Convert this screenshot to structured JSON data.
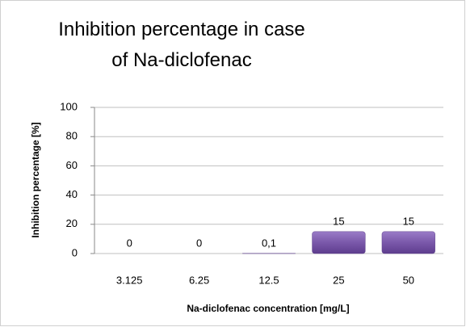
{
  "chart_data": {
    "type": "bar",
    "title": "Inhibition percentage in case of Na-diclofenac",
    "x_label": "Na-diclofenac concentration [mg/L]",
    "y_label": "Inhibition percentage [%]",
    "categories": [
      "3.125",
      "6.25",
      "12.5",
      "25",
      "50"
    ],
    "values": [
      0,
      0,
      0.1,
      15,
      15
    ],
    "value_labels": [
      "0",
      "0",
      "0,1",
      "15",
      "15"
    ],
    "color": "#7a58aa",
    "ylim": [
      0,
      100
    ],
    "yticks": [
      0,
      20,
      40,
      60,
      80,
      100
    ],
    "grid": true
  }
}
